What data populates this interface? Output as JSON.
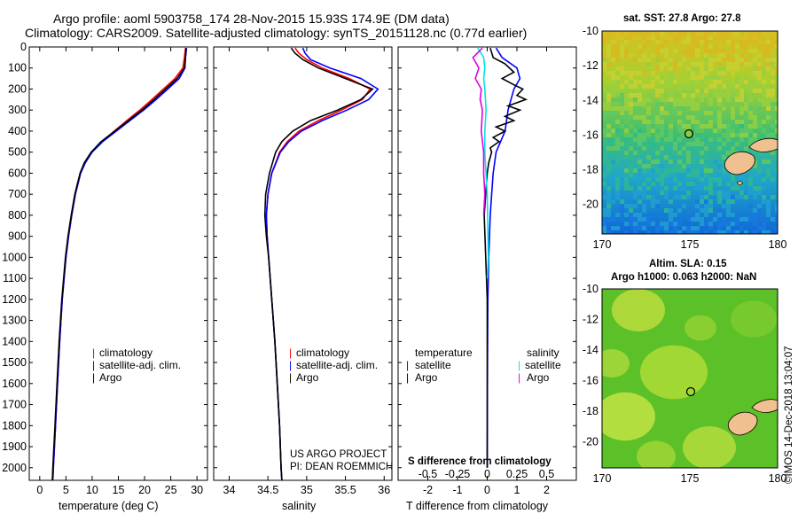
{
  "header": {
    "line1": "Argo profile: aoml 5903758_174 28-Nov-2015 15.93S 174.9E (DM data)",
    "line2": "Climatology: CARS2009. Satellite-adjusted climatology: synTS_20151128.nc (0.77d earlier)"
  },
  "colors": {
    "climatology": "#ff0000",
    "satellite": "#0000ff",
    "argo": "#000000",
    "sat_t": "#0000ff",
    "sat_s": "#00e5e5",
    "argo_s": "#e000e0"
  },
  "chart_data": [
    {
      "type": "line",
      "id": "temperature",
      "xlabel": "temperature (deg C)",
      "ylabel": "depth",
      "xlim": [
        -2,
        32
      ],
      "ylim": [
        2060,
        0
      ],
      "xticks": [
        0,
        5,
        10,
        15,
        20,
        25,
        30
      ],
      "yticks": [
        0,
        100,
        200,
        300,
        400,
        500,
        600,
        700,
        800,
        900,
        1000,
        1100,
        1200,
        1300,
        1400,
        1500,
        1600,
        1700,
        1800,
        1900,
        2000
      ],
      "legend": [
        "climatology",
        "satellite-adj. clim.",
        "Argo"
      ],
      "series": [
        {
          "name": "climatology",
          "depth": [
            5,
            50,
            100,
            150,
            200,
            250,
            300,
            350,
            400,
            450,
            500,
            550,
            600,
            700,
            800,
            900,
            1000,
            1200,
            1400,
            1600,
            1800,
            2000,
            2060
          ],
          "values": [
            27.8,
            27.6,
            27.3,
            25.8,
            23.6,
            21.4,
            19.1,
            16.6,
            14.2,
            11.8,
            9.9,
            8.6,
            7.8,
            6.8,
            6.1,
            5.5,
            5.0,
            4.3,
            3.8,
            3.4,
            3.0,
            2.6,
            2.5
          ]
        },
        {
          "name": "satellite-adj. clim.",
          "depth": [
            5,
            50,
            100,
            150,
            200,
            250,
            300,
            350,
            400,
            450,
            500,
            550,
            600,
            700,
            800,
            900,
            1000,
            1200,
            1400,
            1600,
            1800,
            2000,
            2060
          ],
          "values": [
            28.0,
            27.8,
            27.7,
            26.6,
            24.4,
            22.2,
            19.8,
            17.2,
            14.6,
            12.0,
            10.0,
            8.7,
            7.8,
            6.8,
            6.1,
            5.5,
            5.0,
            4.3,
            3.8,
            3.4,
            3.0,
            2.6,
            2.5
          ]
        },
        {
          "name": "Argo",
          "depth": [
            5,
            50,
            100,
            150,
            200,
            250,
            300,
            350,
            400,
            450,
            500,
            550,
            600,
            700,
            800,
            900,
            1000,
            1200,
            1400,
            1600,
            1800,
            2000,
            2060
          ],
          "values": [
            27.9,
            27.8,
            27.6,
            26.2,
            24.0,
            21.8,
            19.5,
            16.9,
            14.3,
            11.7,
            9.8,
            8.5,
            7.7,
            6.7,
            6.0,
            5.4,
            4.9,
            4.2,
            3.7,
            3.3,
            2.9,
            2.5,
            2.4
          ]
        }
      ]
    },
    {
      "type": "line",
      "id": "salinity",
      "xlabel": "salinity",
      "ylabel": "depth",
      "xlim": [
        33.8,
        36.1
      ],
      "ylim": [
        2060,
        0
      ],
      "xticks": [
        34,
        34.5,
        35,
        35.5,
        36
      ],
      "legend": [
        "climatology",
        "satellite-adj. clim.",
        "Argo"
      ],
      "series": [
        {
          "name": "climatology",
          "depth": [
            5,
            30,
            60,
            100,
            150,
            200,
            250,
            300,
            350,
            400,
            450,
            500,
            600,
            700,
            800,
            900,
            1000,
            1200,
            1400,
            1600,
            1800,
            2000,
            2060
          ],
          "values": [
            34.85,
            34.9,
            35.0,
            35.2,
            35.55,
            35.82,
            35.72,
            35.45,
            35.15,
            34.9,
            34.75,
            34.65,
            34.55,
            34.5,
            34.48,
            34.49,
            34.51,
            34.55,
            34.59,
            34.62,
            34.65,
            34.67,
            34.68
          ]
        },
        {
          "name": "satellite-adj. clim.",
          "depth": [
            5,
            30,
            60,
            100,
            150,
            200,
            250,
            300,
            350,
            400,
            450,
            500,
            600,
            700,
            800,
            900,
            1000,
            1200,
            1400,
            1600,
            1800,
            2000,
            2060
          ],
          "values": [
            34.95,
            34.98,
            35.05,
            35.3,
            35.7,
            35.92,
            35.8,
            35.52,
            35.2,
            34.93,
            34.77,
            34.66,
            34.55,
            34.5,
            34.48,
            34.49,
            34.51,
            34.55,
            34.59,
            34.62,
            34.65,
            34.67,
            34.68
          ]
        },
        {
          "name": "Argo",
          "depth": [
            5,
            30,
            60,
            100,
            150,
            200,
            250,
            300,
            350,
            400,
            450,
            500,
            600,
            700,
            800,
            900,
            1000,
            1200,
            1400,
            1600,
            1800,
            2000,
            2060
          ],
          "values": [
            34.8,
            34.85,
            34.95,
            35.15,
            35.5,
            35.85,
            35.7,
            35.4,
            35.05,
            34.82,
            34.68,
            34.6,
            34.52,
            34.47,
            34.46,
            34.48,
            34.51,
            34.55,
            34.59,
            34.62,
            34.65,
            34.67,
            34.68
          ]
        }
      ]
    },
    {
      "type": "line",
      "id": "differences",
      "xlabel": "T difference from climatology",
      "x2label": "S difference from climatology",
      "xlim": [
        -3,
        3
      ],
      "ylim": [
        2060,
        0
      ],
      "xticks": [
        -2,
        -1,
        0,
        1,
        2
      ],
      "x2ticks": [
        -0.5,
        -0.25,
        0,
        0.25,
        0.5
      ],
      "x2ticklabels": [
        "-0.5",
        "-0.25",
        "0",
        "0.25",
        "0.5"
      ],
      "legend_left_title": "temperature",
      "legend_right_title": "salinity",
      "legend_left": [
        "satellite",
        "Argo"
      ],
      "legend_right": [
        "satellite",
        "Argo"
      ],
      "series": [
        {
          "name": "T satellite",
          "depth": [
            5,
            50,
            100,
            150,
            200,
            250,
            300,
            400,
            500,
            600,
            700,
            800,
            1000,
            1200,
            1500,
            2000
          ],
          "values": [
            0.3,
            0.5,
            1.0,
            1.1,
            0.9,
            0.8,
            0.7,
            0.6,
            0.3,
            0.2,
            0.15,
            0.1,
            0.05,
            0.02,
            0.01,
            0.0
          ]
        },
        {
          "name": "T Argo",
          "depth": [
            5,
            50,
            80,
            120,
            150,
            180,
            200,
            230,
            250,
            280,
            300,
            330,
            350,
            380,
            400,
            430,
            450,
            480,
            500,
            550,
            600,
            700,
            800,
            1000,
            1200,
            1500,
            2000
          ],
          "values": [
            0.1,
            0.2,
            0.6,
            0.9,
            0.5,
            0.9,
            1.2,
            1.0,
            1.3,
            0.7,
            1.1,
            0.6,
            0.9,
            0.3,
            0.6,
            0.2,
            0.4,
            0.1,
            0.15,
            0.05,
            0.0,
            -0.05,
            -0.1,
            -0.05,
            0.0,
            0.0,
            0.0
          ]
        },
        {
          "name": "S satellite",
          "depth": [
            5,
            50,
            100,
            150,
            200,
            300,
            400,
            500,
            700,
            1000,
            1100
          ],
          "values": [
            -0.08,
            -0.03,
            -0.02,
            -0.03,
            -0.02,
            -0.01,
            -0.02,
            -0.02,
            0.0,
            0.01,
            0.0
          ]
        },
        {
          "name": "S Argo",
          "depth": [
            5,
            50,
            100,
            150,
            200,
            250,
            300,
            400,
            500,
            600,
            700,
            800
          ],
          "values": [
            -0.04,
            -0.12,
            -0.07,
            -0.1,
            -0.05,
            -0.06,
            -0.04,
            -0.05,
            -0.03,
            -0.03,
            -0.02,
            -0.03
          ]
        }
      ]
    }
  ],
  "maps": {
    "top": {
      "title": "sat. SST: 27.8 Argo: 27.8",
      "yticks": [
        "-10",
        "-12",
        "-14",
        "-16",
        "-18",
        "-20"
      ],
      "xticks": [
        "170",
        "175",
        "180"
      ]
    },
    "bottom": {
      "title1": "Altim. SLA: 0.15",
      "title2": "Argo h1000: 0.063 h2000: NaN",
      "yticks": [
        "-10",
        "-12",
        "-14",
        "-16",
        "-18",
        "-20"
      ],
      "xticks": [
        "170",
        "175",
        "180"
      ]
    }
  },
  "footer": {
    "credit1": "US ARGO PROJECT",
    "credit2": "PI: DEAN ROEMMICH",
    "stamp": "©IMOS 14-Dec-2018 13:04:07"
  }
}
